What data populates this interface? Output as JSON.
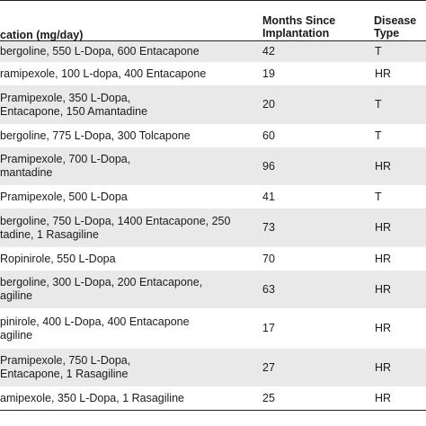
{
  "header": {
    "medication": "cation (mg/day)",
    "months_line1": "Months Since",
    "months_line2": "Implantation",
    "disease_line1": "Disease",
    "disease_line2": "Type"
  },
  "rows": [
    {
      "med": [
        "bergoline, 550 L-Dopa, 600 Entacapone"
      ],
      "months": "42",
      "type": "T"
    },
    {
      "med": [
        "ramipexole, 100 L-dopa, 400 Entacapone"
      ],
      "months": "19",
      "type": "HR"
    },
    {
      "med": [
        "Pramipexole, 350 L-Dopa,",
        "Entacapone, 150 Amantadine"
      ],
      "months": "20",
      "type": "T"
    },
    {
      "med": [
        "bergoline, 775 L-Dopa, 300 Tolcapone"
      ],
      "months": "60",
      "type": "T"
    },
    {
      "med": [
        "Pramipexole, 700 L-Dopa,",
        "mantadine"
      ],
      "months": "96",
      "type": "HR"
    },
    {
      "med": [
        "Pramipexole, 500 L-Dopa"
      ],
      "months": "41",
      "type": "T"
    },
    {
      "med": [
        "bergoline, 750 L-Dopa, 1400 Entacapone, 250",
        "tadine, 1 Rasagiline"
      ],
      "months": "73",
      "type": "HR"
    },
    {
      "med": [
        "Ropinirole, 550 L-Dopa"
      ],
      "months": "70",
      "type": "HR"
    },
    {
      "med": [
        "bergoline, 300 L-Dopa, 200 Entacapone,",
        "agiline"
      ],
      "months": "63",
      "type": "HR"
    },
    {
      "med": [
        "pinirole, 400 L-Dopa, 400 Entacapone",
        "agiline"
      ],
      "months": "17",
      "type": "HR"
    },
    {
      "med": [
        "Pramipexole, 750 L-Dopa,",
        "Entacapone, 1 Rasagiline"
      ],
      "months": "27",
      "type": "HR"
    },
    {
      "med": [
        "amipexole, 350 L-Dopa, 1 Rasagiline"
      ],
      "months": "25",
      "type": "HR"
    }
  ]
}
